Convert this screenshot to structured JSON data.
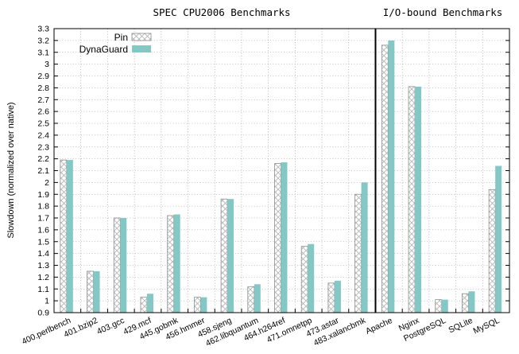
{
  "chart_data": {
    "type": "bar",
    "titles": [
      "SPEC CPU2006 Benchmarks",
      "I/O-bound Benchmarks"
    ],
    "ylabel": "Slowdown (normalized over native)",
    "xlabel": "",
    "ylim": [
      0.9,
      3.3
    ],
    "ytick_step": 0.1,
    "grid": true,
    "legend_position": "top-left",
    "categories": [
      "400.perlbench",
      "401.bzip2",
      "403.gcc",
      "429.mcf",
      "445.gobmk",
      "456.hmmer",
      "458.sjeng",
      "462.libquantum",
      "464.h264ref",
      "471.omnetpp",
      "473.astar",
      "483.xalancbmk",
      "Apache",
      "Nginx",
      "PostgreSQL",
      "SQLite",
      "MySQL"
    ],
    "divider_after_index": 11,
    "series": [
      {
        "name": "Pin",
        "pattern": "crosshatch",
        "color": "#b8b8b8",
        "values": [
          2.19,
          1.25,
          1.7,
          1.03,
          1.72,
          1.03,
          1.86,
          1.12,
          2.16,
          1.46,
          1.15,
          1.9,
          3.16,
          2.81,
          1.01,
          1.06,
          1.94
        ]
      },
      {
        "name": "DynaGuard",
        "pattern": "solid",
        "color": "#84c8c6",
        "values": [
          2.19,
          1.25,
          1.7,
          1.06,
          1.73,
          1.03,
          1.86,
          1.14,
          2.17,
          1.48,
          1.17,
          2.0,
          3.2,
          2.81,
          1.01,
          1.08,
          2.14
        ]
      }
    ]
  }
}
